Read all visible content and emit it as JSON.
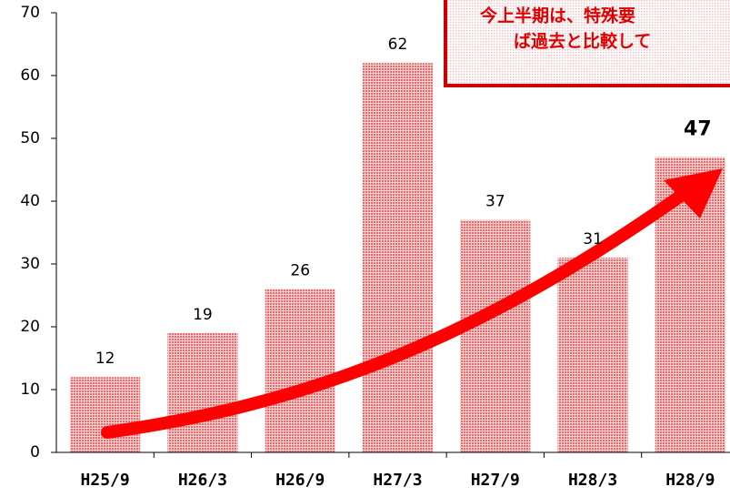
{
  "chart_data": {
    "type": "bar",
    "categories": [
      "H25/9",
      "H26/3",
      "H26/9",
      "H27/3",
      "H27/9",
      "H28/3",
      "H28/9"
    ],
    "values": [
      12,
      19,
      26,
      62,
      37,
      31,
      47
    ],
    "color": "#f08080",
    "ylim": [
      0,
      70
    ],
    "yticks": [
      0,
      10,
      20,
      30,
      40,
      50,
      60,
      70
    ],
    "annotations": [
      "今上半期は、特殊要",
      "ば過去と比較して"
    ]
  }
}
